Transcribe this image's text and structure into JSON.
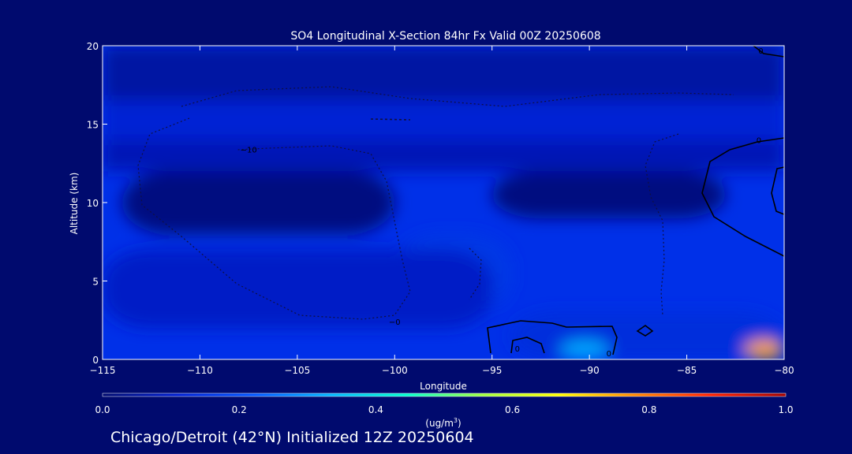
{
  "chart_data": {
    "type": "heatmap",
    "title": "SO4 Longitudinal X-Section 84hr  Fx Valid 00Z 20250608",
    "xlabel": "Longitude",
    "ylabel": "Altitude (km)",
    "xlim": [
      -115,
      -80
    ],
    "ylim": [
      0,
      20
    ],
    "x_ticks": [
      -115,
      -110,
      -105,
      -100,
      -95,
      -90,
      -85,
      -80
    ],
    "y_ticks": [
      0,
      5,
      10,
      15,
      20
    ],
    "x_tick_labels": [
      "−115",
      "−110",
      "−105",
      "−100",
      "−95",
      "−90",
      "−85",
      "−80"
    ],
    "y_tick_labels": [
      "0",
      "5",
      "10",
      "15",
      "20"
    ],
    "colorbar": {
      "range": [
        0.0,
        1.0
      ],
      "tick_values": [
        0.0,
        0.2,
        0.4,
        0.6,
        0.8,
        1.0
      ],
      "tick_labels": [
        "0.0",
        "0.2",
        "0.4",
        "0.6",
        "0.8",
        "1.0"
      ],
      "unit_label": "(ug/m",
      "unit_sup": "3",
      "unit_close": ")",
      "colors": [
        "#000a6e",
        "#001fd0",
        "#0055ff",
        "#00b4ff",
        "#00ffd0",
        "#a0ff40",
        "#ffff00",
        "#ff8800",
        "#ff2000",
        "#a00000"
      ]
    },
    "field": [
      {
        "region": "upper-stratosphere",
        "x": [
          -115,
          -80
        ],
        "y": [
          16.5,
          20
        ],
        "value": 0.06
      },
      {
        "region": "band-15km",
        "x": [
          -115,
          -80
        ],
        "y": [
          14,
          16.5
        ],
        "value": 0.12
      },
      {
        "region": "upper-trop",
        "x": [
          -115,
          -80
        ],
        "y": [
          12,
          14
        ],
        "value": 0.08
      },
      {
        "region": "west-minimum",
        "x": [
          -114,
          -100
        ],
        "y": [
          8,
          12
        ],
        "value": 0.02
      },
      {
        "region": "central-minimum",
        "x": [
          -95,
          -83
        ],
        "y": [
          9,
          12
        ],
        "value": 0.02
      },
      {
        "region": "mid-plume",
        "x": [
          -100,
          -94
        ],
        "y": [
          3,
          8
        ],
        "value": 0.16
      },
      {
        "region": "plume-core",
        "x": [
          -97,
          -96
        ],
        "y": [
          5.5,
          6.5
        ],
        "value": 0.2
      },
      {
        "region": "lower-trop",
        "x": [
          -115,
          -95
        ],
        "y": [
          2,
          7
        ],
        "value": 0.1
      },
      {
        "region": "surface-east",
        "x": [
          -94,
          -80
        ],
        "y": [
          0,
          3
        ],
        "value": 0.14
      },
      {
        "region": "surface-max-90W",
        "x": [
          -91.5,
          -89
        ],
        "y": [
          0,
          1.2
        ],
        "value": 0.32
      },
      {
        "region": "surface-max-80W",
        "x": [
          -82,
          -80
        ],
        "y": [
          0,
          1.2
        ],
        "value": 0.75
      }
    ],
    "contour_labels": [
      {
        "text": "0",
        "x": -81.2,
        "y": 19.7
      },
      {
        "text": "−10",
        "x": -107.5,
        "y": 13.4
      },
      {
        "text": "0",
        "x": -81.3,
        "y": 14
      },
      {
        "text": "−0",
        "x": -100,
        "y": 2.4
      },
      {
        "text": "0",
        "x": -93.7,
        "y": 0.7
      },
      {
        "text": "0",
        "x": -89,
        "y": 0.4
      }
    ]
  },
  "footer": "Chicago/Detroit (42°N) Initialized 12Z 20250604"
}
